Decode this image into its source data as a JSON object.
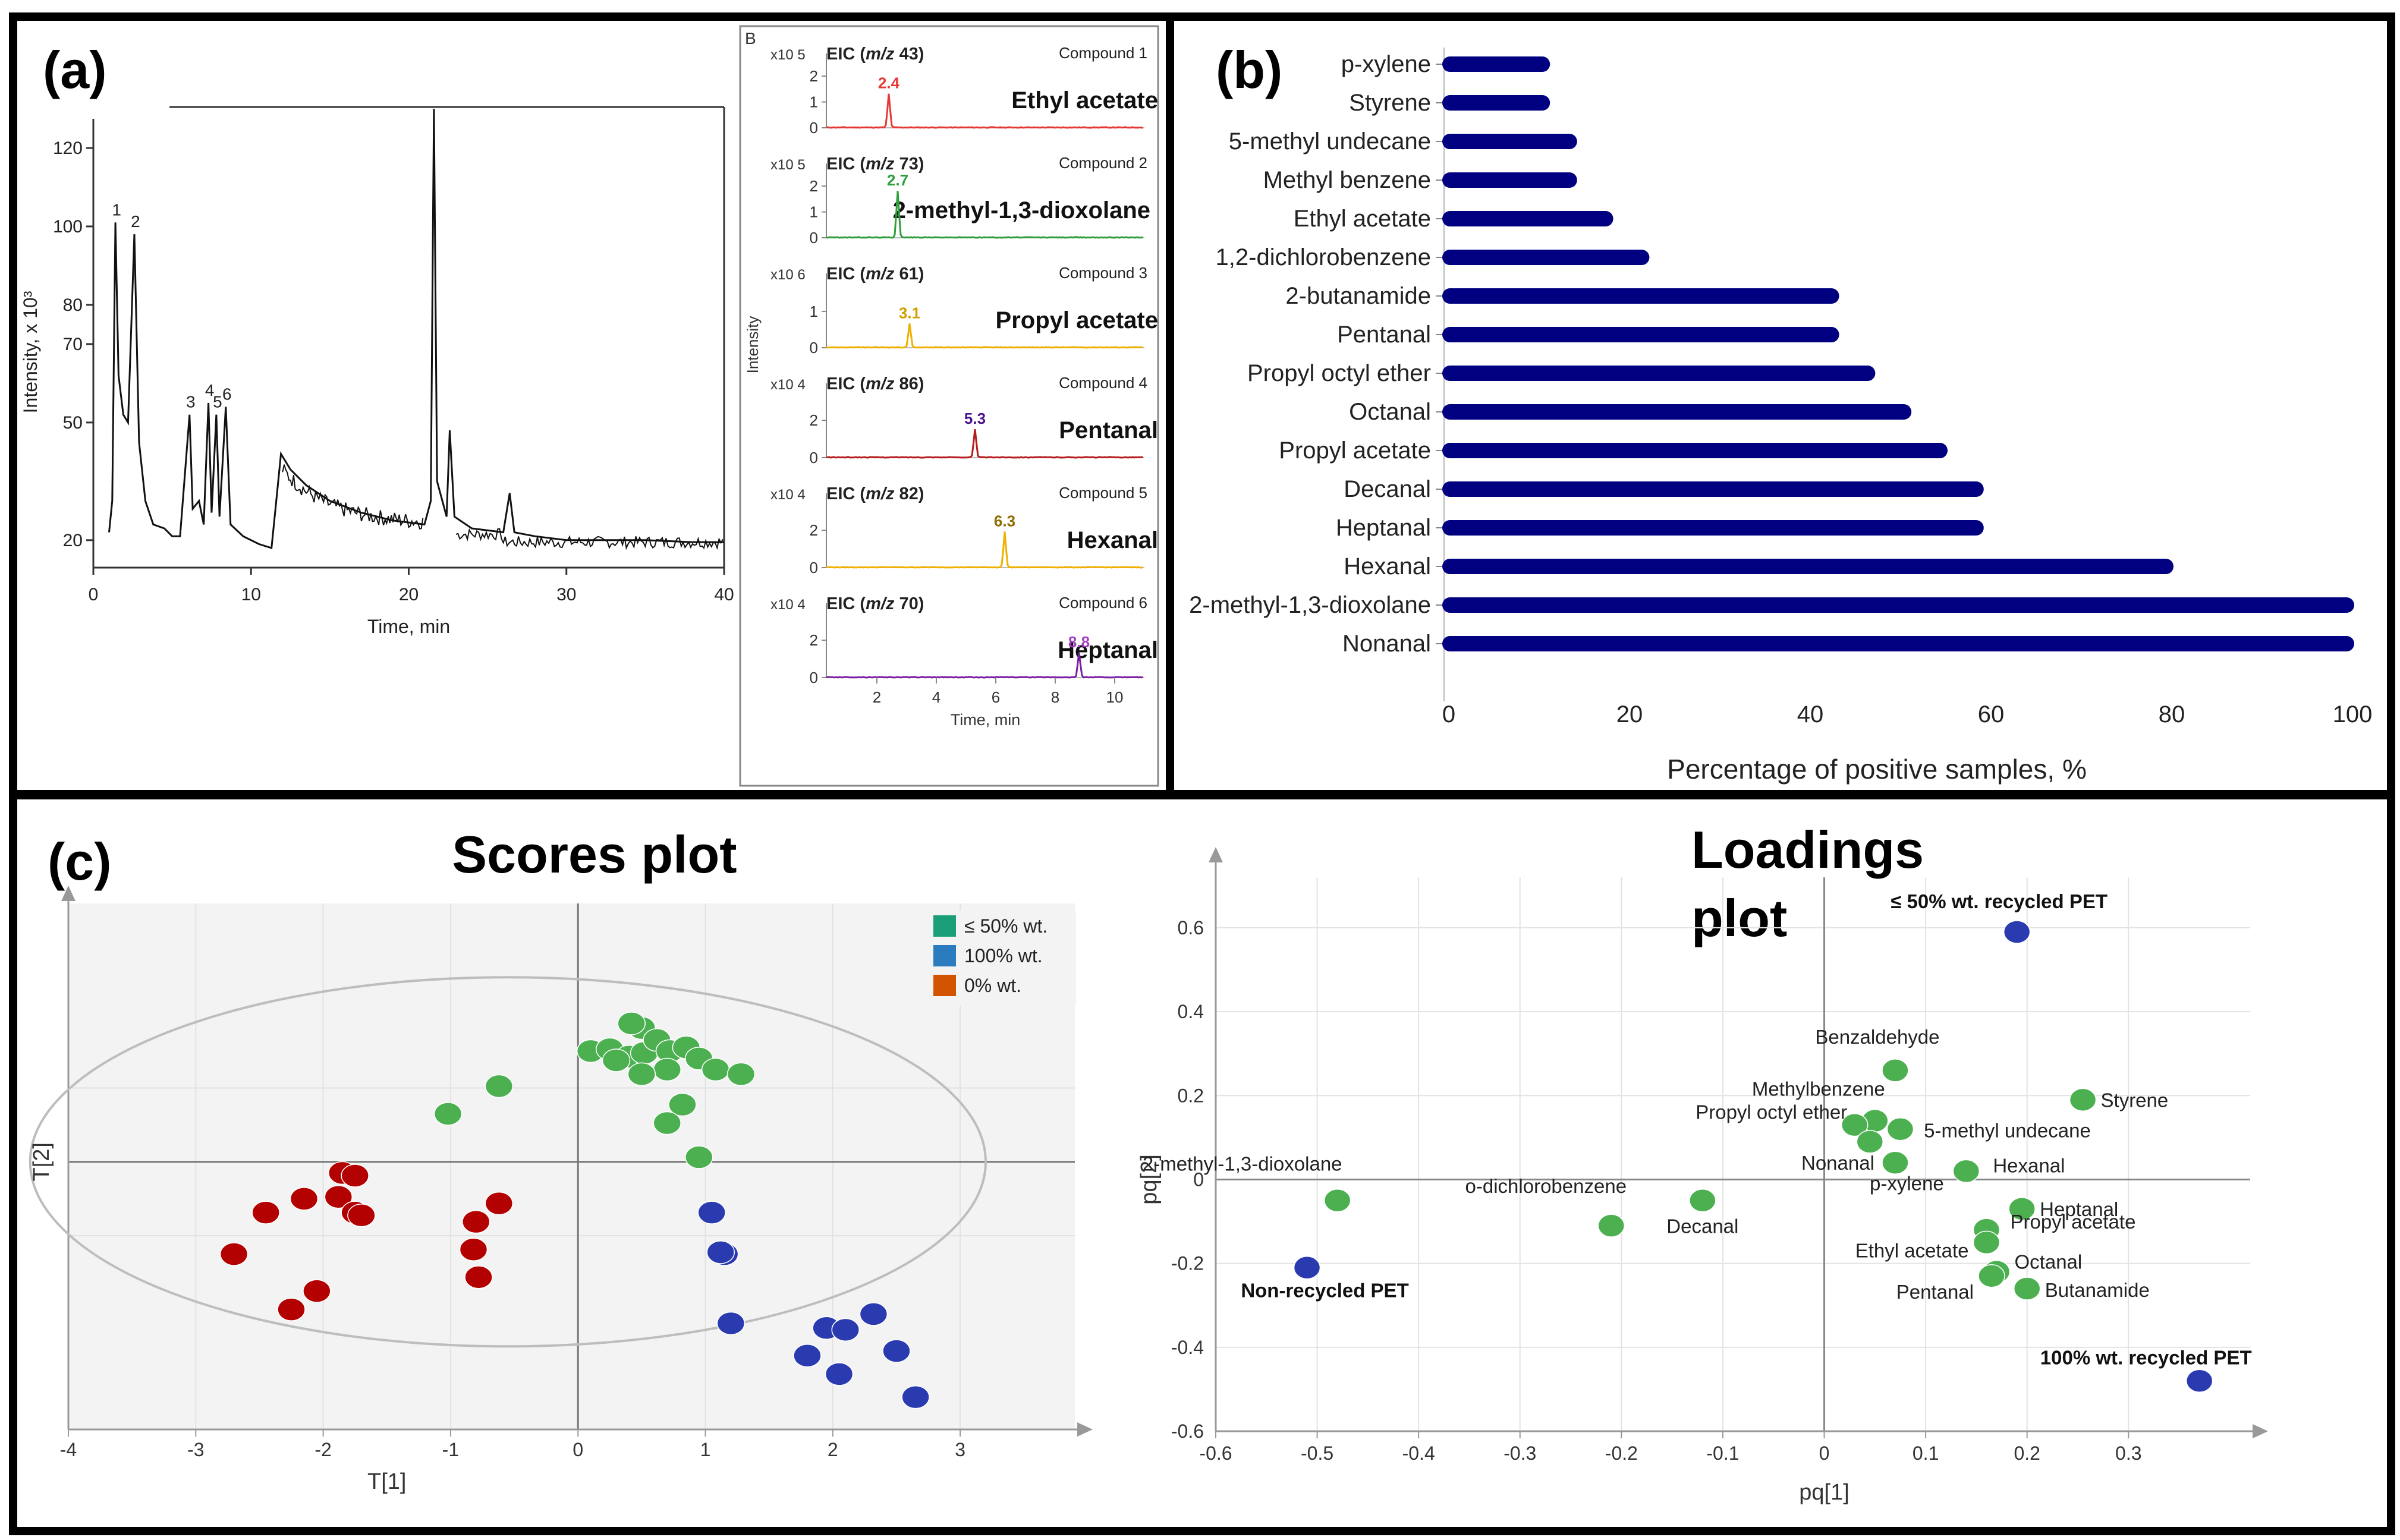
{
  "panels": {
    "a": {
      "label": "(a)"
    },
    "b": {
      "label": "(b)"
    },
    "c": {
      "label": "(c)"
    }
  },
  "colors": {
    "navy": "#000080",
    "green": "#4caf50",
    "blue": "#2a3bb0",
    "red": "#b30000",
    "legend_green": "#1a9e77",
    "legend_blue": "#2b7bbf",
    "legend_orange": "#d35400",
    "tic_line": "#111111",
    "eic_red": "#e53935",
    "eic_green": "#2e9e3a",
    "eic_orange": "#f0b000",
    "eic_darkred": "#b71c1c",
    "eic_purple": "#7b1fa2",
    "eic_violet": "#a040c0"
  },
  "chart_data": [
    {
      "id": "tic",
      "type": "line",
      "xlabel": "Time, min",
      "ylabel": "Intensity, x 10³",
      "xlim": [
        0,
        40
      ],
      "ylim": [
        13,
        135
      ],
      "xticks": [
        0,
        10,
        20,
        30,
        40
      ],
      "yticks": [
        20,
        50,
        70,
        80,
        100,
        120
      ],
      "peaks": [
        {
          "label": "1",
          "x": 1.4,
          "y": 101
        },
        {
          "label": "2",
          "x": 2.6,
          "y": 98
        },
        {
          "label": "3",
          "x": 6.1,
          "y": 52
        },
        {
          "label": "4",
          "x": 7.3,
          "y": 55
        },
        {
          "label": "5",
          "x": 7.8,
          "y": 52
        },
        {
          "label": "6",
          "x": 8.4,
          "y": 54
        }
      ],
      "points": [
        [
          1.0,
          22
        ],
        [
          1.2,
          30
        ],
        [
          1.4,
          101
        ],
        [
          1.6,
          62
        ],
        [
          1.9,
          52
        ],
        [
          2.2,
          50
        ],
        [
          2.6,
          98
        ],
        [
          2.9,
          45
        ],
        [
          3.3,
          30
        ],
        [
          3.8,
          24
        ],
        [
          4.5,
          23
        ],
        [
          5.0,
          21
        ],
        [
          5.5,
          21
        ],
        [
          6.1,
          52
        ],
        [
          6.3,
          28
        ],
        [
          6.7,
          30
        ],
        [
          7.0,
          24
        ],
        [
          7.3,
          55
        ],
        [
          7.5,
          27
        ],
        [
          7.8,
          52
        ],
        [
          8.0,
          26
        ],
        [
          8.4,
          54
        ],
        [
          8.7,
          24
        ],
        [
          9.5,
          21
        ],
        [
          10.5,
          19
        ],
        [
          11.3,
          18
        ],
        [
          11.6,
          30
        ],
        [
          11.9,
          42
        ],
        [
          12.5,
          38
        ],
        [
          13.5,
          34
        ],
        [
          15,
          30
        ],
        [
          17,
          27
        ],
        [
          19,
          25
        ],
        [
          21,
          24
        ],
        [
          21.4,
          30
        ],
        [
          21.6,
          130
        ],
        [
          21.8,
          35
        ],
        [
          22.4,
          26
        ],
        [
          22.6,
          48
        ],
        [
          22.9,
          26
        ],
        [
          24,
          23
        ],
        [
          26,
          22
        ],
        [
          26.4,
          32
        ],
        [
          26.7,
          22
        ],
        [
          28,
          21
        ],
        [
          30,
          20
        ],
        [
          32,
          20
        ],
        [
          35,
          20
        ],
        [
          38,
          19.5
        ],
        [
          40,
          19.5
        ]
      ]
    },
    {
      "id": "eic",
      "type": "line",
      "panel_label": "B",
      "ylabel": "Intensity",
      "xlabel": "Time, min",
      "xlim": [
        0.3,
        11
      ],
      "xticks": [
        2,
        4,
        6,
        8,
        10
      ],
      "series": [
        {
          "title_prefix": "EIC (",
          "title_mz": "m/z",
          "title_value": " 43)",
          "compound": "Compound 1",
          "name": "Ethyl acetate",
          "scale": "x10 5",
          "yticks": [
            "0",
            "1",
            "2"
          ],
          "ymax": 2.6,
          "peak_rt": 2.4,
          "peak_label": "2.4",
          "peak_height": 1.3,
          "color": "#e53935",
          "label_color": "#e53935"
        },
        {
          "title_prefix": "EIC (",
          "title_mz": "m/z",
          "title_value": " 73)",
          "compound": "Compound 2",
          "name": "2-methyl-1,3-dioxolane",
          "scale": "x10 5",
          "yticks": [
            "0",
            "1",
            "2"
          ],
          "ymax": 2.6,
          "peak_rt": 2.7,
          "peak_label": "2.7",
          "peak_height": 1.8,
          "color": "#2e9e3a",
          "label_color": "#2e9e3a"
        },
        {
          "title_prefix": "EIC (",
          "title_mz": "m/z",
          "title_value": " 61)",
          "compound": "Compound 3",
          "name": "Propyl acetate",
          "scale": "x10 6",
          "yticks": [
            "0",
            "1"
          ],
          "ymax": 1.85,
          "peak_rt": 3.1,
          "peak_label": "3.1",
          "peak_height": 0.65,
          "color": "#f0b000",
          "label_color": "#d4a000"
        },
        {
          "title_prefix": "EIC (",
          "title_mz": "m/z",
          "title_value": " 86)",
          "compound": "Compound 4",
          "name": "Pentanal",
          "scale": "x10 4",
          "yticks": [
            "0",
            "2"
          ],
          "ymax": 3.6,
          "peak_rt": 5.3,
          "peak_label": "5.3",
          "peak_height": 1.5,
          "color": "#b71c1c",
          "label_color": "#4a148c"
        },
        {
          "title_prefix": "EIC (",
          "title_mz": "m/z",
          "title_value": " 82)",
          "compound": "Compound 5",
          "name": "Hexanal",
          "scale": "x10 4",
          "yticks": [
            "0",
            "2"
          ],
          "ymax": 3.6,
          "peak_rt": 6.3,
          "peak_label": "6.3",
          "peak_height": 1.9,
          "color": "#f0b000",
          "label_color": "#8d6e00"
        },
        {
          "title_prefix": "EIC (",
          "title_mz": "m/z",
          "title_value": " 70)",
          "compound": "Compound 6",
          "name": "Heptanal",
          "scale": "x10 4",
          "yticks": [
            "0",
            "2"
          ],
          "ymax": 3.6,
          "peak_rt": 8.8,
          "peak_label": "8.8",
          "peak_height": 1.3,
          "color": "#7b1fa2",
          "label_color": "#a040c0"
        }
      ]
    },
    {
      "id": "bar",
      "type": "bar",
      "orientation": "horizontal",
      "xlabel": "Percentage of positive samples, %",
      "xlim": [
        0,
        100
      ],
      "xticks": [
        0,
        20,
        40,
        60,
        80,
        100
      ],
      "categories": [
        "p-xylene",
        "Styrene",
        "5-methyl undecane",
        "Methyl benzene",
        "Ethyl acetate",
        "1,2-dichlorobenzene",
        "2-butanamide",
        "Pentanal",
        "Propyl octyl ether",
        "Octanal",
        "Propyl acetate",
        "Decanal",
        "Heptanal",
        "Hexanal",
        "2-methyl-1,3-dioxolane",
        "Nonanal"
      ],
      "values": [
        11,
        11,
        14,
        14,
        18,
        22,
        43,
        43,
        47,
        51,
        55,
        59,
        59,
        80,
        100,
        100
      ]
    },
    {
      "id": "scores",
      "type": "scatter",
      "title": "Scores plot",
      "xlabel": "T[1]",
      "ylabel": "T[2]",
      "xlim": [
        -4,
        3.9
      ],
      "ylim": [
        -2.9,
        2.8
      ],
      "xticks": [
        -4,
        -3,
        -2,
        -1,
        0,
        1,
        2,
        3
      ],
      "ellipse": {
        "cx": -0.55,
        "cy": 0,
        "rx": 3.75,
        "ry": 2.0
      },
      "legend": [
        {
          "label": "≤ 50% wt.",
          "color": "#1a9e77"
        },
        {
          "label": "100% wt.",
          "color": "#2b7bbf"
        },
        {
          "label": "0% wt.",
          "color": "#d35400"
        }
      ],
      "series": [
        {
          "name": "≤ 50% wt.",
          "color": "#4caf50",
          "points": [
            [
              0.1,
              1.2
            ],
            [
              0.25,
              1.22
            ],
            [
              0.4,
              1.14
            ],
            [
              0.5,
              1.45
            ],
            [
              0.52,
              1.18
            ],
            [
              0.62,
              1.32
            ],
            [
              0.72,
              1.2
            ],
            [
              0.7,
              1.0
            ],
            [
              0.85,
              1.24
            ],
            [
              0.95,
              1.12
            ],
            [
              1.08,
              1.0
            ],
            [
              1.28,
              0.95
            ],
            [
              0.5,
              0.95
            ],
            [
              0.82,
              0.62
            ],
            [
              0.7,
              0.42
            ],
            [
              0.95,
              0.05
            ],
            [
              -0.62,
              0.82
            ],
            [
              -1.02,
              0.52
            ],
            [
              0.42,
              1.5
            ],
            [
              0.3,
              1.1
            ]
          ]
        },
        {
          "name": "100% wt.",
          "color": "#2a3bb0",
          "points": [
            [
              1.05,
              -0.55
            ],
            [
              1.15,
              -1.0
            ],
            [
              1.2,
              -1.75
            ],
            [
              1.12,
              -0.98
            ],
            [
              1.95,
              -1.8
            ],
            [
              2.1,
              -1.82
            ],
            [
              2.32,
              -1.65
            ],
            [
              2.5,
              -2.05
            ],
            [
              1.8,
              -2.1
            ],
            [
              2.05,
              -2.3
            ],
            [
              2.65,
              -2.55
            ]
          ]
        },
        {
          "name": "0% wt.",
          "color": "#b30000",
          "points": [
            [
              -2.7,
              -1.0
            ],
            [
              -2.45,
              -0.55
            ],
            [
              -2.15,
              -0.4
            ],
            [
              -1.85,
              -0.12
            ],
            [
              -1.75,
              -0.15
            ],
            [
              -1.88,
              -0.38
            ],
            [
              -1.75,
              -0.55
            ],
            [
              -1.7,
              -0.58
            ],
            [
              -2.05,
              -1.4
            ],
            [
              -2.25,
              -1.6
            ],
            [
              -0.8,
              -0.65
            ],
            [
              -0.82,
              -0.95
            ],
            [
              -0.78,
              -1.25
            ],
            [
              -0.62,
              -0.45
            ]
          ]
        }
      ]
    },
    {
      "id": "loadings",
      "type": "scatter",
      "title": "Loadings\nplot",
      "title_line1": "Loadings",
      "title_line2": "plot",
      "xlabel": "pq[1]",
      "ylabel": "pq[2]",
      "xlim": [
        -0.6,
        0.42
      ],
      "ylim": [
        -0.6,
        0.75
      ],
      "xticks": [
        -0.6,
        -0.5,
        -0.4,
        -0.3,
        -0.2,
        -0.1,
        0,
        0.1,
        0.2,
        0.3
      ],
      "yticks": [
        -0.6,
        -0.4,
        -0.2,
        0,
        0.2,
        0.4,
        0.6
      ],
      "variables": [
        {
          "label": "2-methyl-1,3-dioxolane",
          "x": -0.48,
          "y": -0.05
        },
        {
          "label": "o-dichlorobenzene",
          "x": -0.21,
          "y": -0.11
        },
        {
          "label": "Decanal",
          "x": -0.12,
          "y": -0.05
        },
        {
          "label": "Benzaldehyde",
          "x": 0.07,
          "y": 0.26
        },
        {
          "label": "Methylbenzene",
          "x": 0.05,
          "y": 0.14
        },
        {
          "label": "Propyl octyl ether",
          "x": 0.03,
          "y": 0.13
        },
        {
          "label": "",
          "x": 0.045,
          "y": 0.09
        },
        {
          "label": "5-methyl undecane",
          "x": 0.075,
          "y": 0.12
        },
        {
          "label": "Styrene",
          "x": 0.255,
          "y": 0.19
        },
        {
          "label": "Nonanal",
          "x": 0.07,
          "y": 0.04
        },
        {
          "label": "p-xylene",
          "x": 0.14,
          "y": 0.02
        },
        {
          "label": "Hexanal",
          "x": 0.14,
          "y": 0.02
        },
        {
          "label": "Heptanal",
          "x": 0.195,
          "y": -0.07
        },
        {
          "label": "Propyl acetate",
          "x": 0.16,
          "y": -0.12
        },
        {
          "label": "Ethyl acetate",
          "x": 0.16,
          "y": -0.15
        },
        {
          "label": "Octanal",
          "x": 0.17,
          "y": -0.22
        },
        {
          "label": "Pentanal",
          "x": 0.165,
          "y": -0.23
        },
        {
          "label": "Butanamide",
          "x": 0.2,
          "y": -0.26
        }
      ],
      "classes": [
        {
          "label": "≤ 50% wt. recycled PET",
          "x": 0.19,
          "y": 0.59
        },
        {
          "label": "Non-recycled PET",
          "x": -0.51,
          "y": -0.21
        },
        {
          "label": "100% wt. recycled PET",
          "x": 0.37,
          "y": -0.48
        }
      ]
    }
  ]
}
